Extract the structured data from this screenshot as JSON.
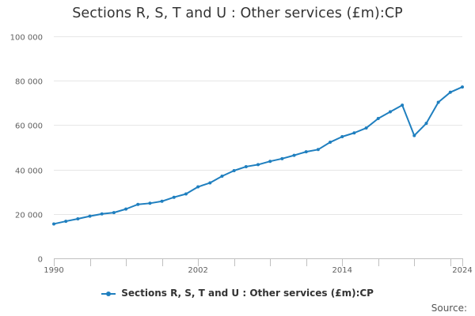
{
  "colors": {
    "series": "#1f7fbf",
    "grid": "#e6e6e6",
    "axis": "#c0c0c0"
  },
  "source_label": "Source:",
  "chart_data": {
    "type": "line",
    "title": "Sections R, S, T and U : Other services (£m):CP",
    "xlabel": "",
    "ylabel": "",
    "xlim": [
      1990,
      2024
    ],
    "ylim": [
      0,
      100000
    ],
    "yticks": [
      0,
      20000,
      40000,
      60000,
      80000,
      100000
    ],
    "ytick_labels": [
      "0",
      "20 000",
      "40 000",
      "60 000",
      "80 000",
      "100 000"
    ],
    "xticks_labeled": [
      1990,
      2002,
      2014,
      2024
    ],
    "xtick_labels": [
      "1990",
      "2002",
      "2014",
      "2024"
    ],
    "x": [
      1990,
      1991,
      1992,
      1993,
      1994,
      1995,
      1996,
      1997,
      1998,
      1999,
      2000,
      2001,
      2002,
      2003,
      2004,
      2005,
      2006,
      2007,
      2008,
      2009,
      2010,
      2011,
      2012,
      2013,
      2014,
      2015,
      2016,
      2017,
      2018,
      2019,
      2020,
      2021,
      2022,
      2023,
      2024
    ],
    "series": [
      {
        "name": "Sections R, S, T and U : Other services (£m):CP",
        "values": [
          15500,
          16700,
          17800,
          19000,
          20000,
          20600,
          22200,
          24300,
          24800,
          25700,
          27500,
          29000,
          32200,
          34000,
          37000,
          39500,
          41300,
          42200,
          43700,
          44900,
          46400,
          48000,
          49000,
          52300,
          54800,
          56500,
          58700,
          63000,
          66000,
          69000,
          55300,
          60800,
          70300,
          74800,
          77200
        ]
      }
    ],
    "legend": "bottom-center"
  }
}
